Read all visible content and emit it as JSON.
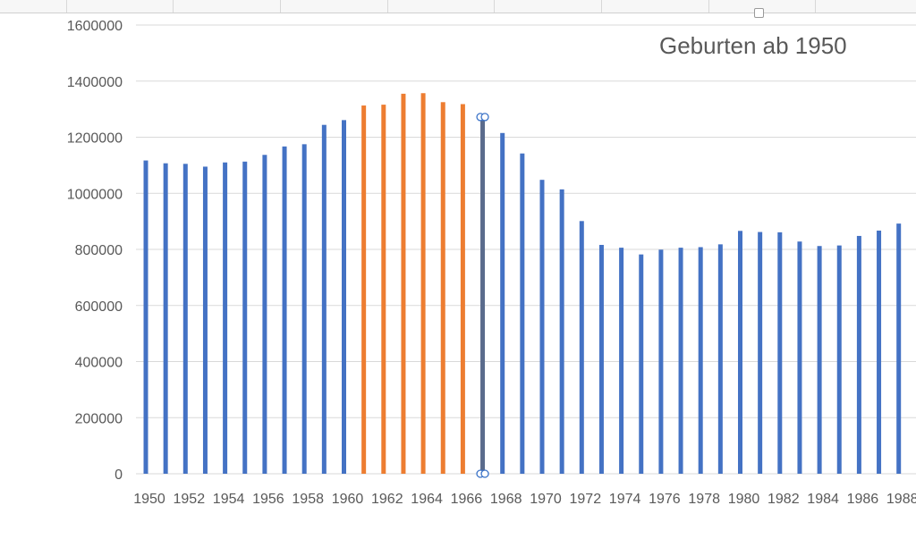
{
  "chart_data": {
    "type": "bar",
    "title": "Geburten ab 1950",
    "xlabel": "",
    "ylabel": "",
    "ylim": [
      0,
      1600000
    ],
    "yticks": [
      "0",
      "200000",
      "400000",
      "600000",
      "800000",
      "1000000",
      "1200000",
      "1400000",
      "1600000"
    ],
    "xtick_labels": [
      "1950",
      "1952",
      "1954",
      "1956",
      "1958",
      "1960",
      "1962",
      "1964",
      "1966",
      "1968",
      "1970",
      "1972",
      "1974",
      "1976",
      "1978",
      "1980",
      "1982",
      "1984",
      "1986",
      "1988"
    ],
    "categories": [
      "1950",
      "1951",
      "1952",
      "1953",
      "1954",
      "1955",
      "1956",
      "1957",
      "1958",
      "1959",
      "1960",
      "1961",
      "1962",
      "1963",
      "1964",
      "1965",
      "1966",
      "1967",
      "1968",
      "1969",
      "1970",
      "1971",
      "1972",
      "1973",
      "1974",
      "1975",
      "1976",
      "1977",
      "1978",
      "1979",
      "1980",
      "1981",
      "1982",
      "1983",
      "1984",
      "1985",
      "1986",
      "1987",
      "1988"
    ],
    "values": [
      1117000,
      1107000,
      1105000,
      1095000,
      1110000,
      1113000,
      1137000,
      1167000,
      1175000,
      1244000,
      1261000,
      1313000,
      1316000,
      1355000,
      1357000,
      1325000,
      1318000,
      1272000,
      1215000,
      1142000,
      1048000,
      1014000,
      901000,
      816000,
      806000,
      782000,
      799000,
      806000,
      808000,
      818000,
      866000,
      862000,
      861000,
      828000,
      812000,
      814000,
      848000,
      867000,
      892000
    ],
    "highlight_years": [
      "1961",
      "1962",
      "1963",
      "1964",
      "1965",
      "1966"
    ],
    "selected_year": "1967",
    "grid": true,
    "legend": "none",
    "colors": {
      "bar": "#4472c4",
      "highlight": "#ed7d31",
      "selected": "#5a6b8c",
      "gridline": "#d9d9d9",
      "text": "#595959"
    }
  }
}
